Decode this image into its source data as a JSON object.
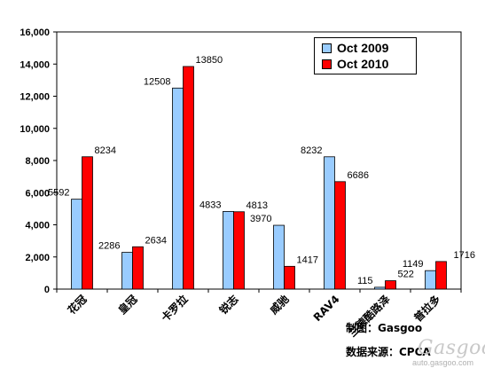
{
  "chart_data": {
    "type": "bar",
    "categories": [
      "花冠",
      "皇冠",
      "卡罗拉",
      "锐志",
      "威驰",
      "RAV4",
      "兰德酷路泽",
      "普拉多"
    ],
    "series": [
      {
        "name": "Oct 2009",
        "color": "#99ccff",
        "values": [
          5592,
          2286,
          12508,
          4833,
          3970,
          8232,
          115,
          1149
        ]
      },
      {
        "name": "Oct 2010",
        "color": "#ff0000",
        "values": [
          8234,
          2634,
          13850,
          4813,
          1417,
          6686,
          522,
          1716
        ]
      }
    ],
    "y_ticks": [
      "0",
      "2,000",
      "4,000",
      "6,000",
      "8,000",
      "10,000",
      "12,000",
      "14,000",
      "16,000"
    ],
    "ylim": [
      0,
      16000
    ],
    "grid": false,
    "legend_position": "top-right"
  },
  "footer": {
    "credit": "制图：Gasgoo",
    "source": "数据来源：CPCA"
  },
  "watermark": {
    "text": "Gasgoo",
    "url": "auto.gasgoo.com"
  }
}
